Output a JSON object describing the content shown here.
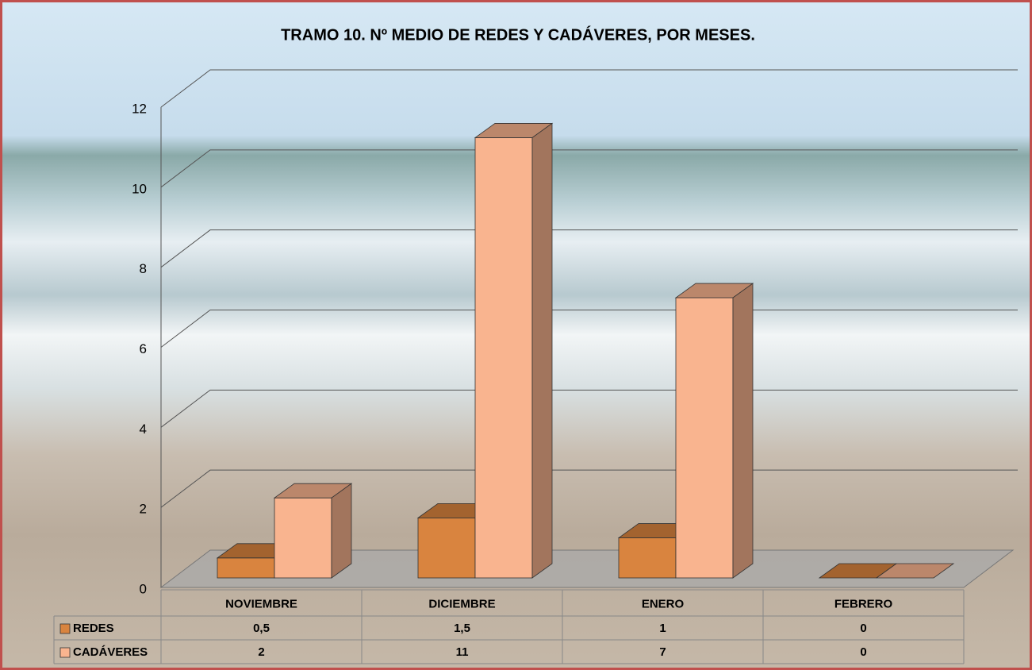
{
  "chart_data": {
    "type": "bar3d",
    "title": "TRAMO 10. Nº MEDIO DE REDES Y CADÁVERES, POR MESES.",
    "categories": [
      "NOVIEMBRE",
      "DICIEMBRE",
      "ENERO",
      "FEBRERO"
    ],
    "series": [
      {
        "name": "REDES",
        "color": "#d9843f",
        "values": [
          0.5,
          1.5,
          1,
          0
        ],
        "value_labels": [
          "0,5",
          "1,5",
          "1",
          "0"
        ]
      },
      {
        "name": "CADÁVERES",
        "color": "#f9b48f",
        "values": [
          2,
          11,
          7,
          0
        ]
      }
    ],
    "ylim": [
      0,
      12
    ],
    "yticks": [
      0,
      2,
      4,
      6,
      8,
      10,
      12
    ],
    "grid": true
  }
}
